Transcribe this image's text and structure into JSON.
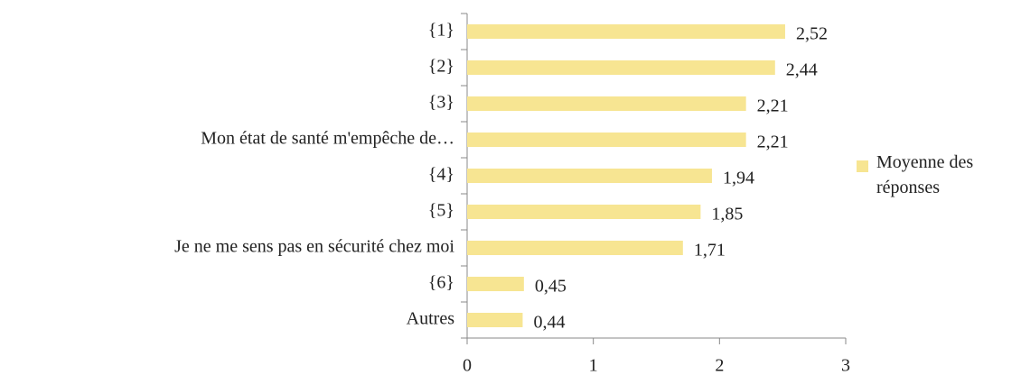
{
  "chart_data": {
    "type": "bar",
    "orientation": "horizontal",
    "categories": [
      "{1}",
      "{2}",
      "{3}",
      "Mon état de santé m'empêche de…",
      "{4}",
      "{5}",
      "Je ne me sens pas en sécurité chez moi",
      "{6}",
      "Autres"
    ],
    "series": [
      {
        "name": "Moyenne des réponses",
        "color": "#f7e592",
        "values": [
          2.52,
          2.44,
          2.21,
          2.21,
          1.94,
          1.85,
          1.71,
          0.45,
          0.44
        ],
        "value_labels": [
          "2,52",
          "2,44",
          "2,21",
          "2,21",
          "1,94",
          "1,85",
          "1,71",
          "0,45",
          "0,44"
        ]
      }
    ],
    "xlim": [
      0,
      3
    ],
    "xticks": [
      0,
      1,
      2,
      3
    ],
    "legend": "right"
  }
}
